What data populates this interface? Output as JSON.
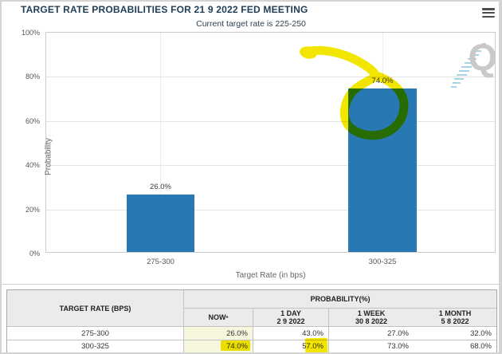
{
  "header": {
    "title": "TARGET RATE PROBABILITIES FOR 21 9 2022 FED MEETING",
    "subtitle": "Current target rate is 225-250",
    "menu_icon": "hamburger-menu-icon"
  },
  "chart_data": {
    "type": "bar",
    "title": "TARGET RATE PROBABILITIES FOR 21 9 2022 FED MEETING",
    "subtitle": "Current target rate is 225-250",
    "categories": [
      "275-300",
      "300-325"
    ],
    "values": [
      26.0,
      74.0
    ],
    "value_labels": [
      "26.0%",
      "74.0%"
    ],
    "xlabel": "Target Rate (in bps)",
    "ylabel": "Probability",
    "ylim": [
      0,
      100
    ],
    "yticks": [
      "100%",
      "80%",
      "60%",
      "40%",
      "20%",
      "0%"
    ],
    "grid": true,
    "legend": "none",
    "bar_color": "#2878b4"
  },
  "table": {
    "row_header": "TARGET RATE (BPS)",
    "group_header": "PROBABILITY(%)",
    "columns": [
      {
        "label": "NOW",
        "sup": "*",
        "date": ""
      },
      {
        "label": "1 DAY",
        "date": "2 9 2022"
      },
      {
        "label": "1 WEEK",
        "date": "30 8 2022"
      },
      {
        "label": "1 MONTH",
        "date": "5 8 2022"
      }
    ],
    "rows": [
      {
        "rate": "275-300",
        "values": [
          "26.0%",
          "43.0%",
          "27.0%",
          "32.0%"
        ]
      },
      {
        "rate": "300-325",
        "values": [
          "74.0%",
          "57.0%",
          "73.0%",
          "68.0%"
        ]
      }
    ]
  },
  "annotations": {
    "marker_color": "#f2e600",
    "circled_bar_value": "74.0%",
    "table_highlighted_values": [
      "74.0%",
      "57.0%"
    ]
  },
  "watermark": {
    "letter": "Q"
  },
  "colors": {
    "title": "#1e3c55",
    "bar": "#2878b4",
    "now_column_bg": "#f7f7dd",
    "highlighter": "#f2e600",
    "header_bg": "#ebebeb"
  }
}
